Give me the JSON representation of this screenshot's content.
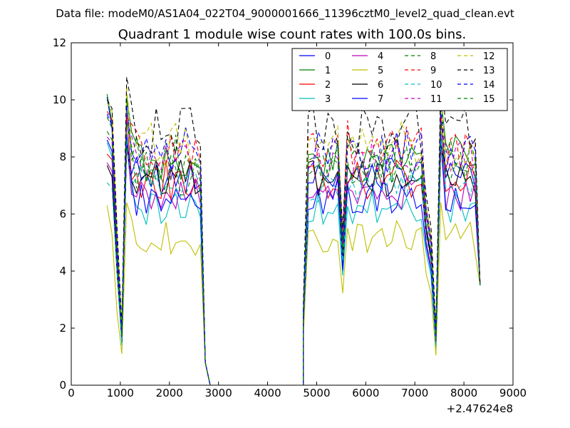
{
  "figure": {
    "supertitle": "Data file: modeM0/AS1A04_022T04_9000001666_11396cztM0_level2_quad_clean.evt"
  },
  "chart_data": {
    "type": "line",
    "title": "Quadrant 1 module wise count rates with 100.0s bins.",
    "xlabel": "",
    "ylabel": "",
    "x_offset_label": "+2.47624e8",
    "xlim": [
      0,
      9000
    ],
    "ylim": [
      0,
      12
    ],
    "x_ticks": [
      0,
      1000,
      2000,
      3000,
      4000,
      5000,
      6000,
      7000,
      8000,
      9000
    ],
    "x_tick_labels": [
      "0",
      "1000",
      "2000",
      "3000",
      "4000",
      "5000",
      "6000",
      "7000",
      "8000",
      "9000"
    ],
    "y_ticks": [
      0,
      2,
      4,
      6,
      8,
      10,
      12
    ],
    "y_tick_labels": [
      "0",
      "2",
      "4",
      "6",
      "8",
      "10",
      "12"
    ],
    "grid": false,
    "legend_position": "top-right",
    "legend_columns": 4,
    "segments": [
      {
        "start": 730,
        "count": 21
      },
      {
        "start": 4730,
        "count": 37
      }
    ],
    "series": [
      {
        "name": "0",
        "color": "#0000ff",
        "dash": "solid",
        "level": 7.4,
        "amp": 0.35,
        "profile": [
          10.1,
          9.0,
          7.6,
          5.0,
          1.6,
          8.6
        ]
      },
      {
        "name": "1",
        "color": "#008000",
        "dash": "solid",
        "level": 8.0,
        "amp": 0.4,
        "profile": [
          10.2,
          9.2,
          8.0,
          5.2,
          1.8,
          10.1
        ]
      },
      {
        "name": "2",
        "color": "#ff0000",
        "dash": "solid",
        "level": 7.2,
        "amp": 0.35,
        "profile": [
          8.1,
          7.9,
          6.6,
          4.4,
          1.5,
          9.5
        ]
      },
      {
        "name": "3",
        "color": "#00bfbf",
        "dash": "solid",
        "level": 6.2,
        "amp": 0.3,
        "profile": [
          8.5,
          8.0,
          6.8,
          4.6,
          1.4,
          8.7
        ]
      },
      {
        "name": "4",
        "color": "#bf00bf",
        "dash": "solid",
        "level": 6.7,
        "amp": 0.3,
        "profile": [
          7.8,
          7.5,
          6.5,
          4.3,
          1.5,
          8.5
        ]
      },
      {
        "name": "5",
        "color": "#bfbf00",
        "dash": "solid",
        "level": 5.2,
        "amp": 0.3,
        "profile": [
          6.3,
          5.3,
          4.2,
          2.6,
          1.1,
          6.4
        ]
      },
      {
        "name": "6",
        "color": "#000000",
        "dash": "solid",
        "level": 7.2,
        "amp": 0.35,
        "profile": [
          7.7,
          7.3,
          6.2,
          4.0,
          1.6,
          8.4
        ]
      },
      {
        "name": "7",
        "color": "#0000ff",
        "dash": "solid",
        "level": 6.5,
        "amp": 0.3,
        "profile": [
          8.6,
          8.2,
          7.0,
          4.6,
          1.5,
          8.8
        ]
      },
      {
        "name": "8",
        "color": "#008000",
        "dash": "dashed",
        "level": 7.9,
        "amp": 0.4,
        "profile": [
          9.4,
          9.0,
          7.8,
          5.0,
          1.9,
          10.0
        ]
      },
      {
        "name": "9",
        "color": "#ff0000",
        "dash": "dashed",
        "level": 8.3,
        "amp": 0.4,
        "profile": [
          9.6,
          9.3,
          8.2,
          5.4,
          1.9,
          9.4
        ]
      },
      {
        "name": "10",
        "color": "#00bfbf",
        "dash": "dashed",
        "level": 7.0,
        "amp": 0.3,
        "profile": [
          7.1,
          6.9,
          6.0,
          4.0,
          1.4,
          8.6
        ]
      },
      {
        "name": "11",
        "color": "#bf00bf",
        "dash": "dashed",
        "level": 7.9,
        "amp": 0.4,
        "profile": [
          8.7,
          8.5,
          7.6,
          5.0,
          1.7,
          9.3
        ]
      },
      {
        "name": "12",
        "color": "#bfbf00",
        "dash": "dashed",
        "level": 8.4,
        "amp": 0.45,
        "profile": [
          9.9,
          9.6,
          8.6,
          5.5,
          2.0,
          10.5
        ]
      },
      {
        "name": "13",
        "color": "#000000",
        "dash": "dashed",
        "level": 8.9,
        "amp": 0.45,
        "profile": [
          10.0,
          9.7,
          8.7,
          5.6,
          2.1,
          10.8
        ]
      },
      {
        "name": "14",
        "color": "#0000ff",
        "dash": "dashed",
        "level": 8.2,
        "amp": 0.4,
        "profile": [
          9.5,
          9.1,
          8.0,
          5.2,
          1.8,
          9.8
        ]
      },
      {
        "name": "15",
        "color": "#008000",
        "dash": "dashed",
        "level": 7.5,
        "amp": 0.4,
        "profile": [
          8.9,
          8.6,
          7.4,
          4.8,
          1.7,
          9.2
        ]
      }
    ]
  }
}
